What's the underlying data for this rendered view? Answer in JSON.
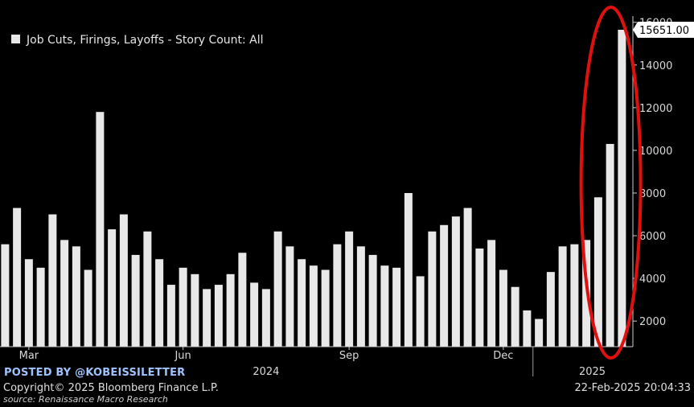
{
  "legend": {
    "label": "Job Cuts, Firings, Layoffs - Story Count: All"
  },
  "last_value_label": "15651.00",
  "footer": {
    "posted_by": "POSTED BY @KOBEISSILETTER",
    "copyright": "Copyright© 2025 Bloomberg Finance L.P.",
    "source": "source: Renaissance Macro Research",
    "timestamp": "22-Feb-2025 20:04:33"
  },
  "colors": {
    "background": "#000000",
    "bars": "#e8e8e8",
    "highlight_ellipse": "#e01010",
    "last_value_box": "#ffffff",
    "posted_by": "#9fc3ff"
  },
  "chart_data": {
    "type": "bar",
    "series": [
      {
        "name": "Job Cuts, Firings, Layoffs - Story Count: All",
        "values": [
          5600,
          7300,
          4900,
          4500,
          7000,
          5800,
          5500,
          4400,
          11800,
          6300,
          7000,
          5100,
          6200,
          4900,
          3700,
          4500,
          4200,
          3500,
          3700,
          4200,
          5200,
          3800,
          3500,
          6200,
          5500,
          4900,
          4600,
          4400,
          5600,
          6200,
          5500,
          5100,
          4600,
          4500,
          8000,
          4100,
          6200,
          6500,
          6900,
          7300,
          5400,
          5800,
          4400,
          3600,
          2500,
          2100,
          4300,
          5500,
          5600,
          5800,
          7800,
          10300,
          15651
        ]
      }
    ],
    "x_labels": [
      {
        "label": "Mar",
        "index": 2
      },
      {
        "label": "Jun",
        "index": 15
      },
      {
        "label": "Sep",
        "index": 29
      },
      {
        "label": "Dec",
        "index": 42
      }
    ],
    "year_labels": [
      {
        "label": "2024",
        "index": 22
      },
      {
        "label": "2025",
        "index": 49.5
      }
    ],
    "year_divider_index": 44.5,
    "ylim": [
      800,
      16500
    ],
    "yticks": [
      2000,
      4000,
      6000,
      8000,
      10000,
      12000,
      14000,
      16000
    ],
    "grid": false,
    "legend_position": "top-left",
    "y_axis_side": "right",
    "highlight": {
      "from_index": 50,
      "to_index": 52
    }
  }
}
